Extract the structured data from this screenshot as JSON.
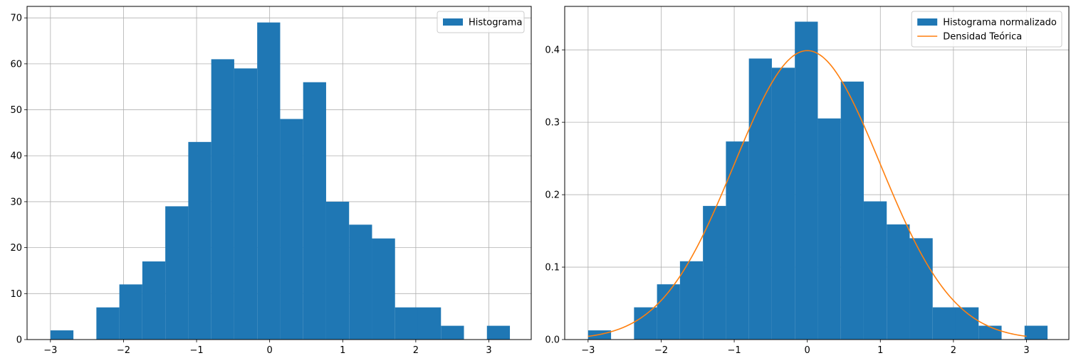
{
  "chart_data": [
    {
      "type": "bar",
      "title": "",
      "xlabel": "",
      "ylabel": "",
      "xlim": [
        -3.32,
        3.58
      ],
      "ylim": [
        0,
        72.5
      ],
      "xticks": [
        -3,
        -2,
        -1,
        0,
        1,
        2,
        3
      ],
      "xtick_labels": [
        "−3",
        "−2",
        "−1",
        "0",
        "1",
        "2",
        "3"
      ],
      "yticks": [
        0,
        10,
        20,
        30,
        40,
        50,
        60,
        70
      ],
      "ytick_labels": [
        "0",
        "10",
        "20",
        "30",
        "40",
        "50",
        "60",
        "70"
      ],
      "grid": true,
      "legend_position": "top-right",
      "bin_edges": [
        -3.0,
        -2.6856,
        -2.3712,
        -2.0568,
        -1.7424,
        -1.428,
        -1.1136,
        -0.7992,
        -0.4848,
        -0.1704,
        0.144,
        0.4584,
        0.7728,
        1.0872,
        1.4016,
        1.716,
        2.0304,
        2.3448,
        2.6592,
        2.9736,
        3.288
      ],
      "series": [
        {
          "name": "Histograma",
          "values": [
            2,
            0,
            7,
            12,
            17,
            29,
            43,
            61,
            59,
            69,
            48,
            56,
            30,
            25,
            22,
            7,
            7,
            3,
            0,
            3
          ],
          "color": "#1f77b4"
        }
      ]
    },
    {
      "type": "bar",
      "title": "",
      "xlabel": "",
      "ylabel": "",
      "xlim": [
        -3.32,
        3.58
      ],
      "ylim": [
        0,
        0.46
      ],
      "xticks": [
        -3,
        -2,
        -1,
        0,
        1,
        2,
        3
      ],
      "xtick_labels": [
        "−3",
        "−2",
        "−1",
        "0",
        "1",
        "2",
        "3"
      ],
      "yticks": [
        0.0,
        0.1,
        0.2,
        0.3,
        0.4
      ],
      "ytick_labels": [
        "0.0",
        "0.1",
        "0.2",
        "0.3",
        "0.4"
      ],
      "grid": true,
      "legend_position": "top-right",
      "bin_edges": [
        -3.0,
        -2.6856,
        -2.3712,
        -2.0568,
        -1.7424,
        -1.428,
        -1.1136,
        -0.7992,
        -0.4848,
        -0.1704,
        0.144,
        0.4584,
        0.7728,
        1.0872,
        1.4016,
        1.716,
        2.0304,
        2.3448,
        2.6592,
        2.9736,
        3.288
      ],
      "series": [
        {
          "name": "Histograma normalizado",
          "values": [
            0.0127,
            0,
            0.0445,
            0.0763,
            0.1081,
            0.1845,
            0.2735,
            0.388,
            0.3753,
            0.4389,
            0.3053,
            0.3562,
            0.1908,
            0.159,
            0.1399,
            0.0445,
            0.0445,
            0.0191,
            0,
            0.0191
          ],
          "color": "#1f77b4"
        }
      ],
      "curve": {
        "name": "Densidad Teórica",
        "color": "#ff7f0e",
        "type": "line",
        "x_range": [
          -3,
          3
        ],
        "function": "standard normal pdf"
      }
    }
  ]
}
